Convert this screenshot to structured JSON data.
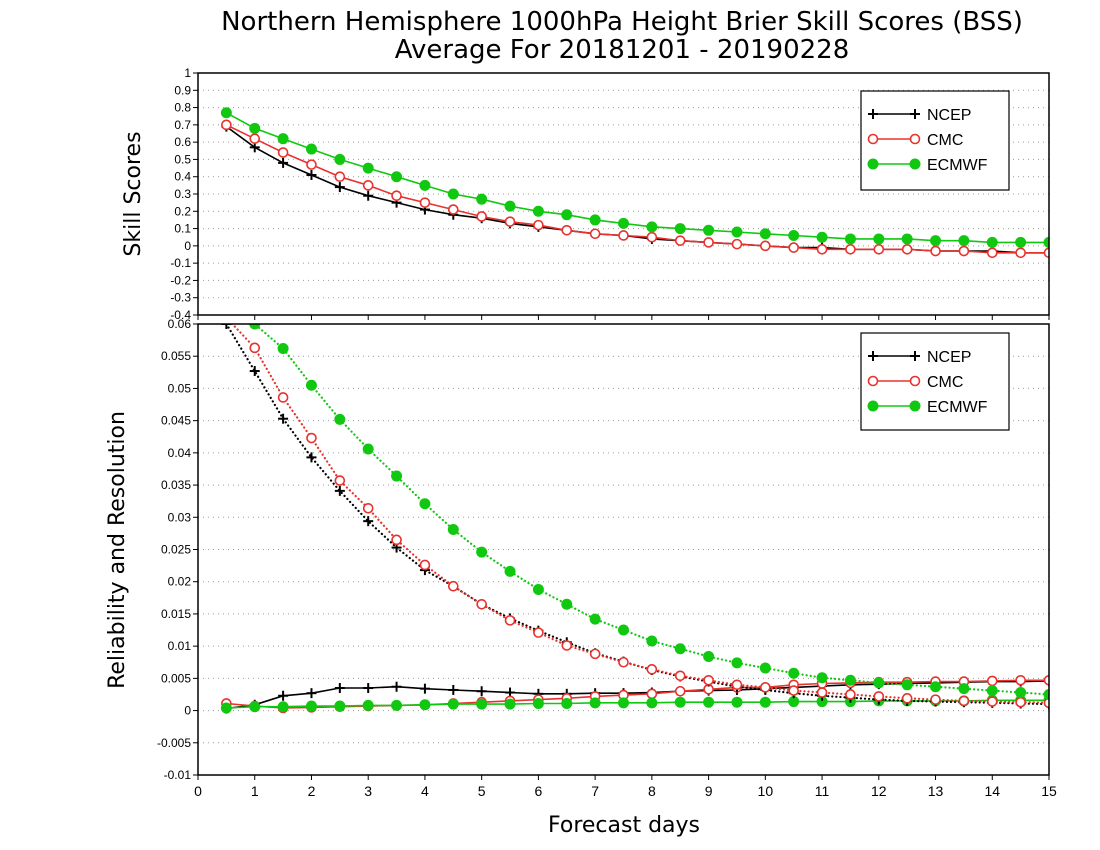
{
  "title": {
    "line1": "Northern Hemisphere 1000hPa Height Brier Skill Scores (BSS)",
    "line2": "Average For 20181201 - 20190228"
  },
  "colors": {
    "NCEP": "#000000",
    "CMC": "#e8322e",
    "ECMWF": "#10c810",
    "grid": "#9a9a9a"
  },
  "chart_data": [
    {
      "type": "line",
      "ylabel": "Skill Scores",
      "xlabel": "Forecast days",
      "xlim": [
        0,
        15
      ],
      "ylim": [
        -0.4,
        1
      ],
      "yticks": [
        "-0.4",
        "-0.3",
        "-0.2",
        "-0.1",
        "0",
        "0.1",
        "0.2",
        "0.3",
        "0.4",
        "0.5",
        "0.6",
        "0.7",
        "0.8",
        "0.9",
        "1"
      ],
      "xticks": [
        "0",
        "1",
        "2",
        "3",
        "4",
        "5",
        "6",
        "7",
        "8",
        "9",
        "10",
        "11",
        "12",
        "13",
        "14",
        "15"
      ],
      "grid": true,
      "legend": {
        "placement": "top-right",
        "entries": [
          "NCEP",
          "CMC",
          "ECMWF"
        ]
      },
      "x": [
        0.5,
        1,
        1.5,
        2,
        2.5,
        3,
        3.5,
        4,
        4.5,
        5,
        5.5,
        6,
        6.5,
        7,
        7.5,
        8,
        8.5,
        9,
        9.5,
        10,
        10.5,
        11,
        11.5,
        12,
        12.5,
        13,
        13.5,
        14,
        14.5,
        15
      ],
      "series": [
        {
          "name": "NCEP",
          "marker": "plus",
          "style": "solid",
          "values": [
            0.69,
            0.57,
            0.48,
            0.41,
            0.34,
            0.29,
            0.25,
            0.21,
            0.18,
            0.16,
            0.13,
            0.11,
            0.09,
            0.07,
            0.06,
            0.04,
            0.03,
            0.02,
            0.01,
            0.0,
            -0.01,
            -0.01,
            -0.02,
            -0.02,
            -0.02,
            -0.03,
            -0.03,
            -0.03,
            -0.04,
            -0.04
          ]
        },
        {
          "name": "CMC",
          "marker": "open-circle",
          "style": "solid",
          "values": [
            0.7,
            0.62,
            0.54,
            0.47,
            0.4,
            0.35,
            0.29,
            0.25,
            0.21,
            0.17,
            0.14,
            0.12,
            0.09,
            0.07,
            0.06,
            0.05,
            0.03,
            0.02,
            0.01,
            0.0,
            -0.01,
            -0.02,
            -0.02,
            -0.02,
            -0.02,
            -0.03,
            -0.03,
            -0.04,
            -0.04,
            -0.04
          ]
        },
        {
          "name": "ECMWF",
          "marker": "filled-circle",
          "style": "solid",
          "values": [
            0.77,
            0.68,
            0.62,
            0.56,
            0.5,
            0.45,
            0.4,
            0.35,
            0.3,
            0.27,
            0.23,
            0.2,
            0.18,
            0.15,
            0.13,
            0.11,
            0.1,
            0.09,
            0.08,
            0.07,
            0.06,
            0.05,
            0.04,
            0.04,
            0.04,
            0.03,
            0.03,
            0.02,
            0.02,
            0.02
          ]
        }
      ]
    },
    {
      "type": "line",
      "ylabel": "Reliability and Resolution",
      "xlabel": "Forecast days",
      "xlim": [
        0,
        15
      ],
      "ylim": [
        -0.01,
        0.06
      ],
      "yticks": [
        "-0.01",
        "-0.005",
        "0",
        "0.005",
        "0.01",
        "0.015",
        "0.02",
        "0.025",
        "0.03",
        "0.035",
        "0.04",
        "0.045",
        "0.05",
        "0.055",
        "0.06"
      ],
      "xticks": [
        "0",
        "1",
        "2",
        "3",
        "4",
        "5",
        "6",
        "7",
        "8",
        "9",
        "10",
        "11",
        "12",
        "13",
        "14",
        "15"
      ],
      "grid": true,
      "legend": {
        "placement": "top-right",
        "entries": [
          "NCEP",
          "CMC",
          "ECMWF"
        ]
      },
      "x": [
        0.5,
        1,
        1.5,
        2,
        2.5,
        3,
        3.5,
        4,
        4.5,
        5,
        5.5,
        6,
        6.5,
        7,
        7.5,
        8,
        8.5,
        9,
        9.5,
        10,
        10.5,
        11,
        11.5,
        12,
        12.5,
        13,
        13.5,
        14,
        14.5,
        15
      ],
      "series": [
        {
          "name": "NCEP",
          "group": "reliability",
          "marker": "plus",
          "style": "solid",
          "values": [
            0.0003,
            0.0009,
            0.0023,
            0.0027,
            0.0035,
            0.0035,
            0.0037,
            0.0034,
            0.0032,
            0.003,
            0.0028,
            0.0026,
            0.0026,
            0.0027,
            0.0027,
            0.0028,
            0.003,
            0.0031,
            0.0032,
            0.0034,
            0.0036,
            0.0038,
            0.004,
            0.0041,
            0.0042,
            0.0043,
            0.0044,
            0.0045,
            0.0045,
            0.0046
          ]
        },
        {
          "name": "CMC",
          "group": "reliability",
          "marker": "open-circle",
          "style": "solid",
          "values": [
            0.0011,
            0.0007,
            0.0004,
            0.0005,
            0.0006,
            0.0007,
            0.0008,
            0.0009,
            0.0011,
            0.0013,
            0.0015,
            0.0017,
            0.0019,
            0.0022,
            0.0024,
            0.0026,
            0.003,
            0.0033,
            0.0036,
            0.0036,
            0.004,
            0.0042,
            0.0043,
            0.0044,
            0.0044,
            0.0045,
            0.0045,
            0.0046,
            0.0047,
            0.0047
          ]
        },
        {
          "name": "ECMWF",
          "group": "reliability",
          "marker": "filled-circle",
          "style": "solid",
          "values": [
            0.0004,
            0.0006,
            0.0006,
            0.0007,
            0.0007,
            0.0008,
            0.0008,
            0.0009,
            0.001,
            0.001,
            0.001,
            0.0011,
            0.0011,
            0.0012,
            0.0012,
            0.0012,
            0.0013,
            0.0013,
            0.0013,
            0.0013,
            0.0014,
            0.0014,
            0.0014,
            0.0015,
            0.0015,
            0.0015,
            0.0015,
            0.0016,
            0.0016,
            0.0016
          ]
        },
        {
          "name": "NCEP",
          "group": "resolution",
          "marker": "plus",
          "style": "dotted",
          "values": [
            0.06,
            0.0527,
            0.0453,
            0.0393,
            0.0341,
            0.0294,
            0.0253,
            0.0218,
            0.0193,
            0.0165,
            0.0143,
            0.0124,
            0.0106,
            0.0089,
            0.0076,
            0.0063,
            0.0053,
            0.0045,
            0.0037,
            0.0032,
            0.0027,
            0.0023,
            0.002,
            0.0017,
            0.0015,
            0.0014,
            0.0013,
            0.0012,
            0.0011,
            0.001
          ]
        },
        {
          "name": "CMC",
          "group": "resolution",
          "marker": "open-circle",
          "style": "dotted",
          "values": [
            0.061,
            0.0563,
            0.0486,
            0.0423,
            0.0357,
            0.0314,
            0.0265,
            0.0226,
            0.0193,
            0.0165,
            0.014,
            0.0121,
            0.0101,
            0.0088,
            0.0075,
            0.0064,
            0.0054,
            0.0047,
            0.004,
            0.0036,
            0.0031,
            0.0028,
            0.0025,
            0.0022,
            0.0019,
            0.0017,
            0.0015,
            0.0014,
            0.0013,
            0.0012
          ]
        },
        {
          "name": "ECMWF",
          "group": "resolution",
          "marker": "filled-circle",
          "style": "dotted",
          "values": [
            0.062,
            0.06,
            0.0562,
            0.0505,
            0.0452,
            0.0406,
            0.0364,
            0.0321,
            0.0281,
            0.0246,
            0.0216,
            0.0188,
            0.0165,
            0.0142,
            0.0125,
            0.0108,
            0.0096,
            0.0084,
            0.0074,
            0.0066,
            0.0058,
            0.0051,
            0.0047,
            0.0043,
            0.004,
            0.0037,
            0.0034,
            0.0031,
            0.0028,
            0.0025
          ]
        }
      ]
    }
  ]
}
